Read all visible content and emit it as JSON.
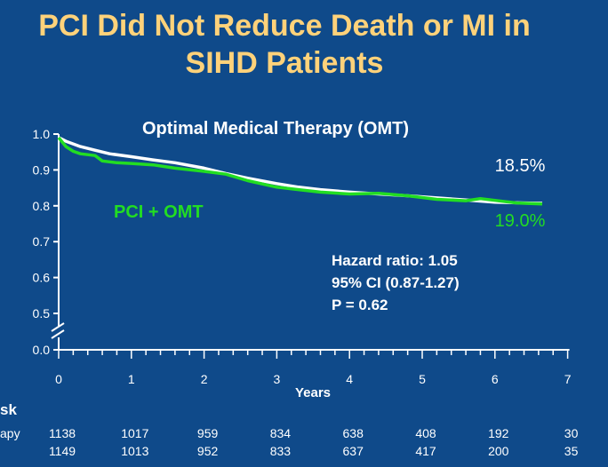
{
  "slide": {
    "title_line1": "PCI Did Not Reduce Death or MI in",
    "title_line2": "SIHD Patients"
  },
  "chart_data": {
    "type": "line",
    "xlabel": "Years",
    "ylabel": "",
    "xlim": [
      0,
      7
    ],
    "ylim": [
      0,
      1.0
    ],
    "y_axis_break": true,
    "x_ticks": [
      "0",
      "1",
      "2",
      "3",
      "4",
      "5",
      "6",
      "7"
    ],
    "y_ticks": [
      "0.0",
      "0.5",
      "0.6",
      "0.7",
      "0.8",
      "0.9",
      "1.0"
    ],
    "colors": {
      "omt": "#ffffff",
      "pci": "#22dd22",
      "background": "#0f4a8a",
      "title": "#ffd27a"
    },
    "series": [
      {
        "name": "Optimal Medical Therapy (OMT)",
        "end_label": "18.5%",
        "color": "#ffffff",
        "x": [
          0,
          0.1,
          0.3,
          0.5,
          0.7,
          1.0,
          1.3,
          1.6,
          2.0,
          2.3,
          2.6,
          3.0,
          3.3,
          3.6,
          4.0,
          4.4,
          4.8,
          5.2,
          5.6,
          6.0,
          6.4,
          6.65
        ],
        "y": [
          0.99,
          0.98,
          0.965,
          0.955,
          0.945,
          0.937,
          0.928,
          0.92,
          0.905,
          0.89,
          0.877,
          0.862,
          0.852,
          0.845,
          0.838,
          0.833,
          0.828,
          0.822,
          0.816,
          0.81,
          0.808,
          0.807
        ]
      },
      {
        "name": "PCI + OMT",
        "end_label": "19.0%",
        "color": "#22dd22",
        "x": [
          0,
          0.1,
          0.2,
          0.3,
          0.5,
          0.6,
          0.8,
          1.0,
          1.3,
          1.6,
          2.0,
          2.3,
          2.6,
          3.0,
          3.3,
          3.6,
          4.0,
          4.4,
          4.8,
          5.2,
          5.6,
          5.8,
          6.0,
          6.3,
          6.65
        ],
        "y": [
          0.99,
          0.965,
          0.952,
          0.945,
          0.94,
          0.925,
          0.92,
          0.918,
          0.914,
          0.905,
          0.896,
          0.888,
          0.87,
          0.852,
          0.845,
          0.838,
          0.833,
          0.835,
          0.828,
          0.818,
          0.814,
          0.82,
          0.815,
          0.808,
          0.805
        ]
      }
    ],
    "annotations": {
      "hazard_ratio": "Hazard ratio: 1.05",
      "ci": "95% CI (0.87-1.27)",
      "p_value": "P = 0.62"
    },
    "risk_table": {
      "header": "sk",
      "rows": [
        {
          "label": "apy",
          "values": [
            "1138",
            "1017",
            "959",
            "834",
            "638",
            "408",
            "192",
            "30"
          ]
        },
        {
          "label": "",
          "values": [
            "1149",
            "1013",
            "952",
            "833",
            "637",
            "417",
            "200",
            "35"
          ]
        }
      ]
    }
  }
}
